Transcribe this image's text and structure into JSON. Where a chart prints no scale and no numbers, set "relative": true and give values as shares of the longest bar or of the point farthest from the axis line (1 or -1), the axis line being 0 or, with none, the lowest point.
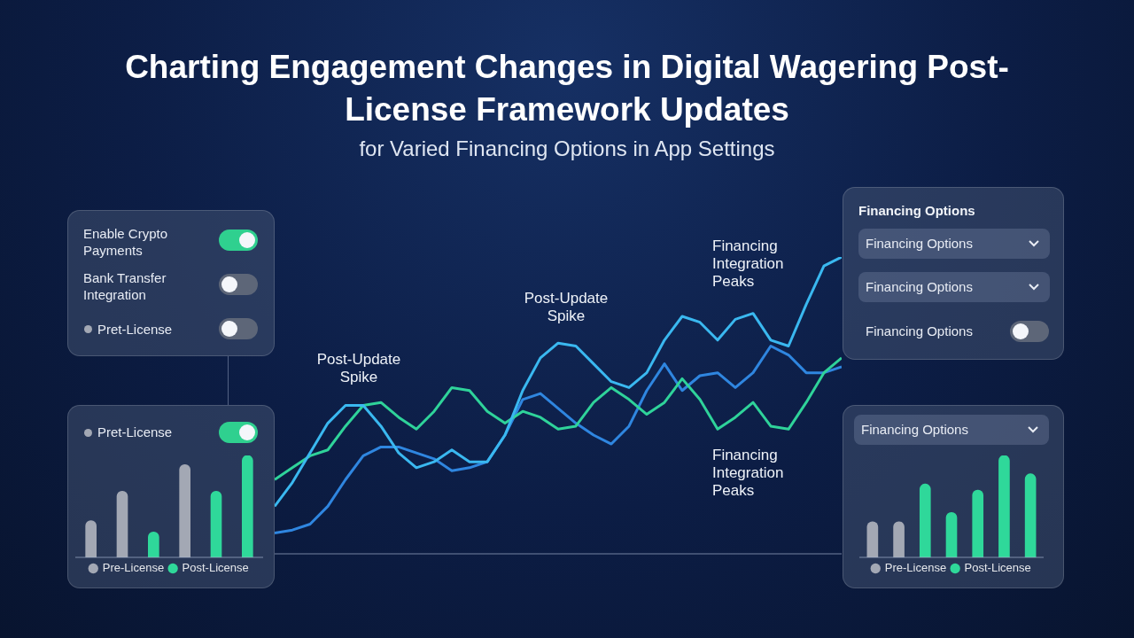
{
  "chart_data": [
    {
      "type": "line",
      "title": "Charting Engagement Changes in Digital Wagering Post-License Framework Updates",
      "subtitle": "for Varied Financing Options in App Settings",
      "relative": true,
      "categories": [
        null,
        null,
        null,
        null,
        null,
        null,
        null,
        null,
        null,
        null,
        null,
        null,
        null,
        null,
        null,
        null,
        null,
        null,
        null,
        null,
        null,
        null,
        null,
        null,
        null,
        null,
        null,
        null,
        null,
        null,
        null,
        null,
        null
      ],
      "series": [
        {
          "color": "#3ab8f0",
          "values": [
            0.16,
            0.24,
            0.34,
            0.44,
            0.5,
            0.5,
            0.43,
            0.34,
            0.29,
            0.31,
            0.35,
            0.31,
            0.31,
            0.4,
            0.55,
            0.66,
            0.71,
            0.7,
            0.64,
            0.58,
            0.56,
            0.61,
            0.72,
            0.8,
            0.78,
            0.72,
            0.79,
            0.81,
            0.72,
            0.7,
            0.84,
            0.97,
            1
          ]
        },
        {
          "color": "#2fd39a",
          "values": [
            0.25,
            0.29,
            0.33,
            0.35,
            0.43,
            0.5,
            0.51,
            0.46,
            0.42,
            0.48,
            0.56,
            0.55,
            0.48,
            0.44,
            0.48,
            0.46,
            0.42,
            0.43,
            0.51,
            0.56,
            0.52,
            0.47,
            0.51,
            0.59,
            0.52,
            0.42,
            0.46,
            0.51,
            0.43,
            0.42,
            0.51,
            0.61,
            0.66
          ]
        },
        {
          "color": "#2f86e0",
          "values": [
            0.07,
            0.08,
            0.1,
            0.16,
            0.25,
            0.33,
            0.36,
            0.36,
            0.34,
            0.32,
            0.28,
            0.29,
            0.31,
            0.4,
            0.52,
            0.54,
            0.49,
            0.44,
            0.4,
            0.37,
            0.43,
            0.55,
            0.64,
            0.55,
            0.6,
            0.61,
            0.56,
            0.61,
            0.7,
            0.67,
            0.61,
            0.61,
            0.63
          ]
        }
      ],
      "annotations": [
        "Post-Update Spike",
        "Post-Update Spike",
        "Financing Integration Peaks",
        "Financing Integration Peaks"
      ]
    },
    {
      "type": "bar",
      "relative": true,
      "stacked": true,
      "categories": [
        null,
        null,
        null,
        null,
        null,
        null
      ],
      "legend": "bottom",
      "annotations": [
        "Pret-License"
      ],
      "series": [
        {
          "name": "Pre-License",
          "color": "#a3a8b4",
          "values": [
            0.36,
            0.65,
            null,
            0.91,
            null,
            null
          ]
        },
        {
          "name": "Post-License",
          "color": "#2fd89a",
          "values": [
            null,
            null,
            0.25,
            null,
            0.65,
            1
          ]
        }
      ]
    },
    {
      "type": "bar",
      "relative": true,
      "stacked": true,
      "categories": [
        null,
        null,
        null,
        null,
        null,
        null,
        null
      ],
      "legend": "bottom",
      "annotations": [
        "Financing Options"
      ],
      "series": [
        {
          "name": "Pre-License",
          "color": "#a3a8b4",
          "values": [
            0.35,
            0.35,
            null,
            null,
            null,
            null,
            null
          ]
        },
        {
          "name": "Post-License",
          "color": "#2fd89a",
          "values": [
            null,
            null,
            0.72,
            0.44,
            0.66,
            1,
            0.82
          ]
        }
      ]
    },
    {
      "type": "other",
      "annotations": [
        "Enable Crypto Payments",
        "Bank Transfer Integration",
        "Pret-License"
      ]
    },
    {
      "type": "other",
      "title": "Financing Options",
      "annotations": [
        "Financing Options",
        "Financing Options",
        "Financing Options"
      ]
    }
  ]
}
